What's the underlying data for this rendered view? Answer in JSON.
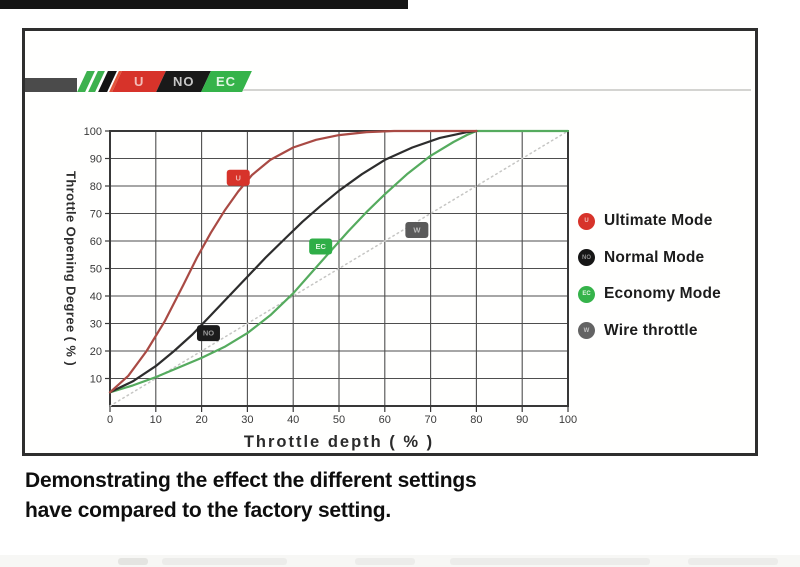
{
  "page": {
    "background": "#ffffff"
  },
  "logo": {
    "badges": [
      {
        "label": "U",
        "bg": "#d7332a",
        "fg": "#f3bdb8"
      },
      {
        "label": "NO",
        "bg": "#191919",
        "fg": "#c7c7c7"
      },
      {
        "label": "EC",
        "bg": "#35b34a",
        "fg": "#e2f6e4"
      }
    ]
  },
  "chart_data": {
    "type": "line",
    "title": "",
    "xlabel": "Throttle depth ( % )",
    "ylabel": "Throttle Opening Degree ( % )",
    "xlim": [
      0,
      100
    ],
    "ylim": [
      0,
      100
    ],
    "grid": true,
    "x_ticks": [
      0,
      10,
      20,
      30,
      40,
      50,
      60,
      70,
      80,
      90,
      100
    ],
    "y_ticks": [
      10,
      20,
      30,
      40,
      50,
      60,
      70,
      80,
      90,
      100
    ],
    "legend_position": "right",
    "series": [
      {
        "name": "Wire throttle",
        "color": "#c6c6c4",
        "style": "dotted",
        "width": 1.5,
        "points": [
          [
            0,
            0
          ],
          [
            100,
            100
          ]
        ]
      },
      {
        "name": "Economy Mode",
        "color": "#55ab5e",
        "style": "solid",
        "width": 2.2,
        "points": [
          [
            0,
            5
          ],
          [
            5,
            7.5
          ],
          [
            10,
            10.5
          ],
          [
            15,
            14
          ],
          [
            20,
            17.5
          ],
          [
            25,
            21.5
          ],
          [
            30,
            26.5
          ],
          [
            35,
            33
          ],
          [
            40,
            41
          ],
          [
            44,
            48.5
          ],
          [
            48,
            56
          ],
          [
            52,
            63.5
          ],
          [
            56,
            70.5
          ],
          [
            60,
            77
          ],
          [
            65,
            84.5
          ],
          [
            70,
            91
          ],
          [
            75,
            96
          ],
          [
            78,
            98.6
          ],
          [
            80,
            100
          ],
          [
            100,
            100
          ]
        ]
      },
      {
        "name": "Normal Mode",
        "color": "#2d2d2d",
        "style": "solid",
        "width": 2.2,
        "points": [
          [
            0,
            5
          ],
          [
            5,
            9
          ],
          [
            10,
            14.5
          ],
          [
            14,
            20
          ],
          [
            18,
            26
          ],
          [
            22,
            33
          ],
          [
            26,
            40
          ],
          [
            30,
            47
          ],
          [
            34,
            54
          ],
          [
            38,
            60.5
          ],
          [
            42,
            67
          ],
          [
            46,
            72.8
          ],
          [
            50,
            78.3
          ],
          [
            55,
            84.3
          ],
          [
            60,
            89.5
          ],
          [
            66,
            94
          ],
          [
            72,
            97.5
          ],
          [
            78,
            99.6
          ],
          [
            80,
            100
          ]
        ]
      },
      {
        "name": "Ultimate Mode",
        "color": "#a94a44",
        "style": "solid",
        "width": 2.2,
        "points": [
          [
            0,
            5
          ],
          [
            4,
            11
          ],
          [
            8,
            20
          ],
          [
            12,
            31
          ],
          [
            16,
            44
          ],
          [
            19,
            54
          ],
          [
            22,
            63
          ],
          [
            25,
            71
          ],
          [
            28,
            78
          ],
          [
            31,
            84
          ],
          [
            35,
            89.5
          ],
          [
            40,
            94
          ],
          [
            45,
            96.8
          ],
          [
            50,
            98.5
          ],
          [
            56,
            99.6
          ],
          [
            62,
            100
          ],
          [
            80,
            100
          ]
        ]
      }
    ],
    "annotations": [
      {
        "label": "U",
        "x": 28,
        "y": 83,
        "bg": "#d7332a",
        "fg": "#f0b5b0"
      },
      {
        "label": "NO",
        "x": 21.5,
        "y": 26.5,
        "bg": "#1c1c1c",
        "fg": "#9a9a9a"
      },
      {
        "label": "EC",
        "x": 46,
        "y": 58,
        "bg": "#2fae47",
        "fg": "#dff5e0"
      },
      {
        "label": "W",
        "x": 67,
        "y": 64,
        "bg": "#5a5a5a",
        "fg": "#bdbdbd"
      }
    ]
  },
  "legend": {
    "items": [
      {
        "label": "Ultimate Mode",
        "dot_color": "#d7332a",
        "dot_text": "U",
        "dot_text_color": "#f3c0bb"
      },
      {
        "label": "Normal Mode",
        "dot_color": "#161616",
        "dot_text": "NO",
        "dot_text_color": "#8f8f8f"
      },
      {
        "label": "Economy Mode",
        "dot_color": "#35b34a",
        "dot_text": "EC",
        "dot_text_color": "#dff5e0"
      },
      {
        "label": "Wire throttle",
        "dot_color": "#636363",
        "dot_text": "W",
        "dot_text_color": "#c4c4c4"
      }
    ]
  },
  "axis": {
    "x_title": "Throttle depth ( % )",
    "y_title": "Throttle Opening Degree ( % )"
  },
  "caption": {
    "line1": "Demonstrating the effect the different settings",
    "line2": "have compared to the factory setting."
  },
  "colors": {
    "grid": "#4e4e4e",
    "plot_border": "#383838",
    "tick_label": "#3a3a3a",
    "top_bar": "#151515"
  }
}
